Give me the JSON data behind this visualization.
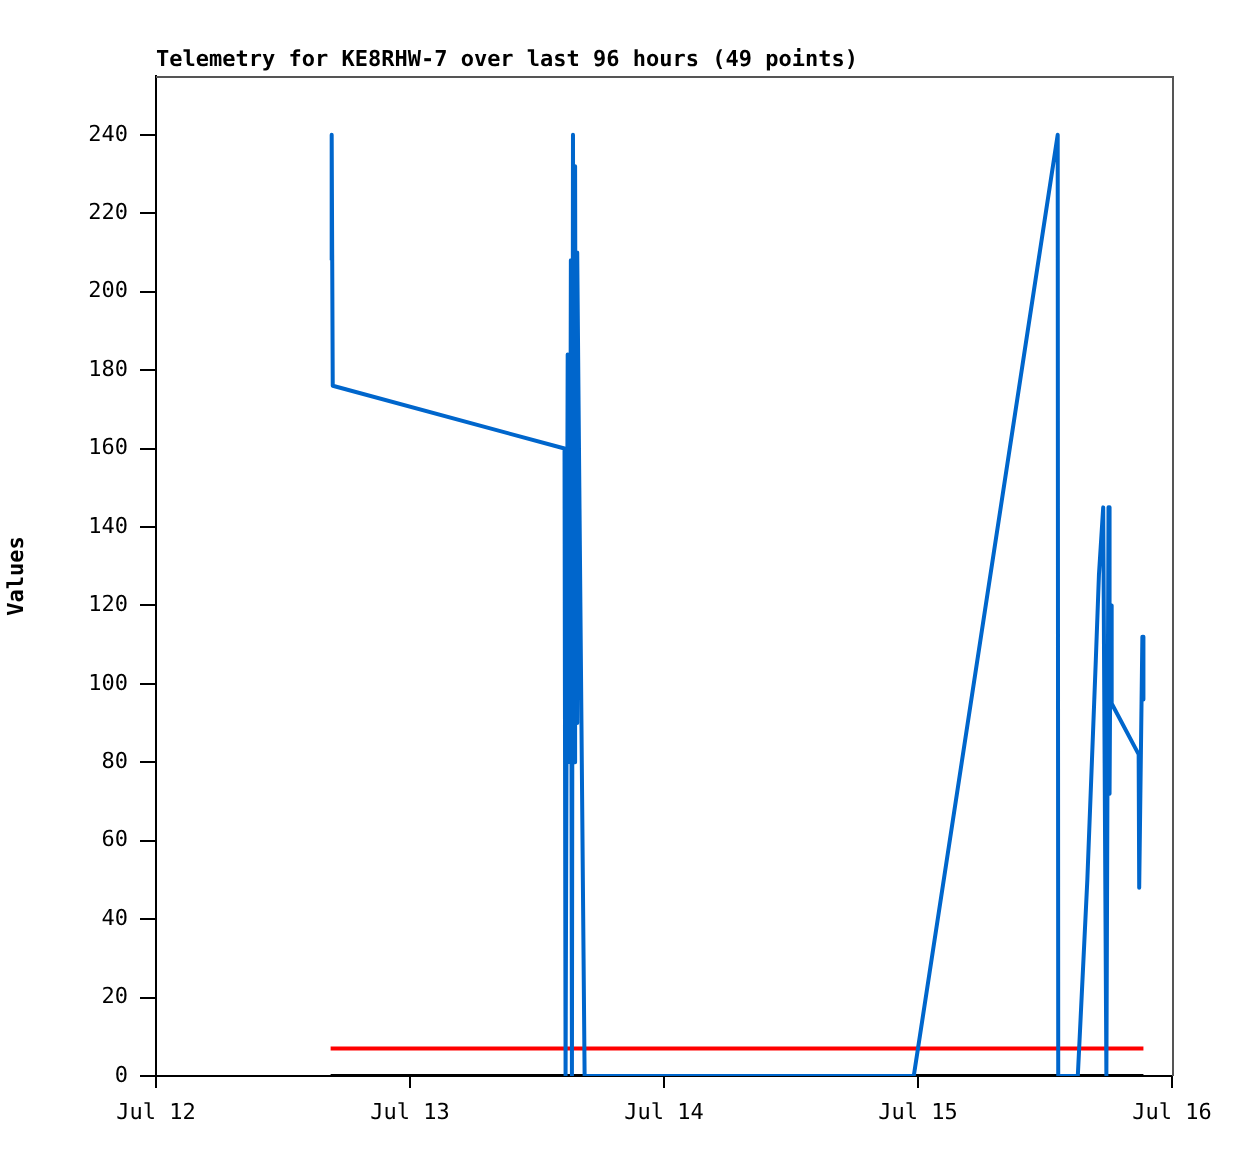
{
  "chart_data": {
    "type": "line",
    "title": "Telemetry for KE8RHW-7 over last 96 hours (49 points)",
    "ylabel": "Values",
    "xlim": [
      "--07-12",
      "--07-16"
    ],
    "xticks": [
      {
        "value": "--07-12",
        "label": "Jul 12"
      },
      {
        "value": "--07-13",
        "label": "Jul 13"
      },
      {
        "value": "--07-14",
        "label": "Jul 14"
      },
      {
        "value": "--07-15",
        "label": "Jul 15"
      },
      {
        "value": "--07-16",
        "label": "Jul 16"
      }
    ],
    "ylim": [
      0,
      255
    ],
    "yticks": [
      0,
      20,
      40,
      60,
      80,
      100,
      120,
      140,
      160,
      180,
      200,
      220,
      240
    ],
    "grid": false,
    "legend": false,
    "marker": "none",
    "line_style": "solid",
    "series": [
      {
        "color": "#0066cc",
        "x": [
          "--07-12T16:30",
          "--07-12T16:36",
          "--07-12T16:42",
          "--07-13T14:36",
          "--07-13T14:42",
          "--07-13T14:54",
          "--07-13T15:06",
          "--07-13T15:12",
          "--07-13T15:18",
          "--07-13T15:24",
          "--07-13T15:30",
          "--07-13T15:36",
          "--07-13T15:42",
          "--07-13T15:48",
          "--07-13T16:00",
          "--07-13T16:12",
          "--07-13T16:24",
          "--07-13T16:30",
          "--07-14T23:36",
          "--07-15T13:12",
          "--07-15T13:15",
          "--07-15T15:06",
          "--07-15T16:00",
          "--07-15T16:48",
          "--07-15T17:06",
          "--07-15T17:30",
          "--07-15T17:48",
          "--07-15T18:00",
          "--07-15T18:06",
          "--07-15T18:12",
          "--07-15T18:18",
          "--07-15T20:51",
          "--07-15T20:54",
          "--07-15T21:12",
          "--07-15T21:18"
        ],
        "values": [
          208,
          240,
          176,
          160,
          0,
          184,
          80,
          208,
          0,
          240,
          80,
          232,
          90,
          210,
          150,
          90,
          30,
          0,
          0,
          240,
          0,
          0,
          50,
          106,
          128,
          145,
          0,
          145,
          72,
          120,
          95,
          82,
          48,
          112,
          96
        ]
      },
      {
        "color": "#ff0000",
        "x": [
          "--07-12T16:30",
          "--07-15T21:18"
        ],
        "values": [
          7,
          7
        ]
      },
      {
        "color": "#000000",
        "x": [
          "--07-12T16:30",
          "--07-15T21:18"
        ],
        "values": [
          0,
          0
        ]
      }
    ]
  }
}
